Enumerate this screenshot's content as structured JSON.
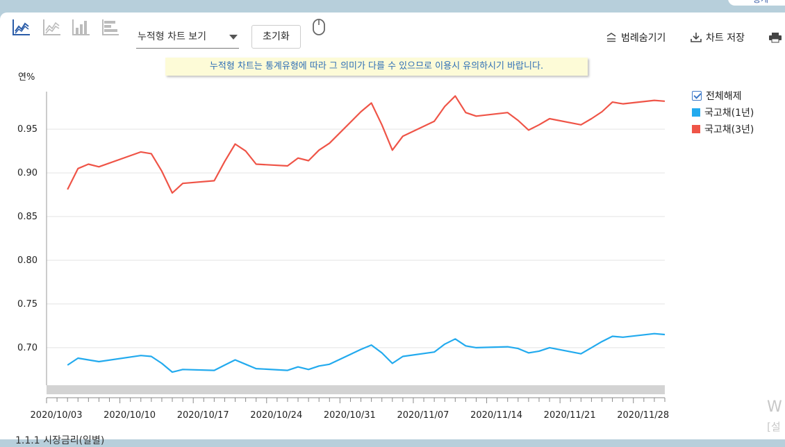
{
  "corner_tab": {
    "label": "통계"
  },
  "toolbar": {
    "chart_type_select": "누적형 차트 보기",
    "reset_label": "초기화",
    "legend_hide_label": "범례숨기기",
    "save_label": "차트 저장"
  },
  "notice": "누적형 차트는 통계유형에 따라 그 의미가 다를 수 있으므로 이용시 유의하시기 바랍니다.",
  "legend": {
    "toggle_all": "전체해제",
    "items": [
      {
        "label": "국고채(1년)",
        "color": "#22aaee"
      },
      {
        "label": "국고채(3년)",
        "color": "#ef5447"
      }
    ]
  },
  "watermark": {
    "line1": "W",
    "line2": "[설"
  },
  "footer": "1.1.1 시장금리(일별)",
  "chart_data": {
    "type": "line",
    "title": "",
    "ylabel": "연%",
    "ylim": [
      0.657,
      0.993
    ],
    "yticks": [
      0.7,
      0.75,
      0.8,
      0.85,
      0.9,
      0.95
    ],
    "ytick_labels": [
      "0.70",
      "0.75",
      "0.80",
      "0.85",
      "0.90",
      "0.95"
    ],
    "x": [
      "2020-10-05",
      "2020-10-06",
      "2020-10-07",
      "2020-10-08",
      "2020-10-12",
      "2020-10-13",
      "2020-10-14",
      "2020-10-15",
      "2020-10-16",
      "2020-10-19",
      "2020-10-20",
      "2020-10-21",
      "2020-10-22",
      "2020-10-23",
      "2020-10-26",
      "2020-10-27",
      "2020-10-28",
      "2020-10-29",
      "2020-10-30",
      "2020-11-02",
      "2020-11-03",
      "2020-11-04",
      "2020-11-05",
      "2020-11-06",
      "2020-11-09",
      "2020-11-10",
      "2020-11-11",
      "2020-11-12",
      "2020-11-13",
      "2020-11-16",
      "2020-11-17",
      "2020-11-18",
      "2020-11-19",
      "2020-11-20",
      "2020-11-23",
      "2020-11-24",
      "2020-11-25",
      "2020-11-26",
      "2020-11-27",
      "2020-11-30",
      "2020-12-01"
    ],
    "x_day_index": [
      2,
      3,
      4,
      5,
      9,
      10,
      11,
      12,
      13,
      16,
      17,
      18,
      19,
      20,
      23,
      24,
      25,
      26,
      27,
      30,
      31,
      32,
      33,
      34,
      37,
      38,
      39,
      40,
      41,
      44,
      45,
      46,
      47,
      48,
      51,
      52,
      53,
      54,
      55,
      58,
      59
    ],
    "x_range_days": [
      0,
      59
    ],
    "xtick_labels": [
      "2020/10/03",
      "2020/10/10",
      "2020/10/17",
      "2020/10/24",
      "2020/10/31",
      "2020/11/07",
      "2020/11/14",
      "2020/11/21",
      "2020/11/28"
    ],
    "xtick_day_index": [
      0,
      7,
      14,
      21,
      28,
      35,
      42,
      49,
      56
    ],
    "series": [
      {
        "name": "국고채(1년)",
        "color": "#22aaee",
        "values": [
          0.68,
          0.688,
          0.686,
          0.684,
          0.691,
          0.69,
          0.682,
          0.672,
          0.675,
          0.674,
          0.68,
          0.686,
          0.681,
          0.676,
          0.674,
          0.678,
          0.675,
          0.679,
          0.681,
          0.698,
          0.703,
          0.694,
          0.682,
          0.69,
          0.695,
          0.704,
          0.71,
          0.702,
          0.7,
          0.701,
          0.699,
          0.694,
          0.696,
          0.7,
          0.693,
          0.7,
          0.707,
          0.713,
          0.712,
          0.716,
          0.715
        ]
      },
      {
        "name": "국고채(3년)",
        "color": "#ef5447",
        "values": [
          0.881,
          0.905,
          0.91,
          0.907,
          0.924,
          0.922,
          0.902,
          0.877,
          0.888,
          0.891,
          0.913,
          0.933,
          0.925,
          0.91,
          0.908,
          0.917,
          0.914,
          0.926,
          0.934,
          0.97,
          0.98,
          0.955,
          0.926,
          0.942,
          0.959,
          0.976,
          0.988,
          0.969,
          0.965,
          0.969,
          0.96,
          0.949,
          0.955,
          0.962,
          0.955,
          0.962,
          0.97,
          0.981,
          0.979,
          0.983,
          0.982
        ]
      }
    ]
  }
}
